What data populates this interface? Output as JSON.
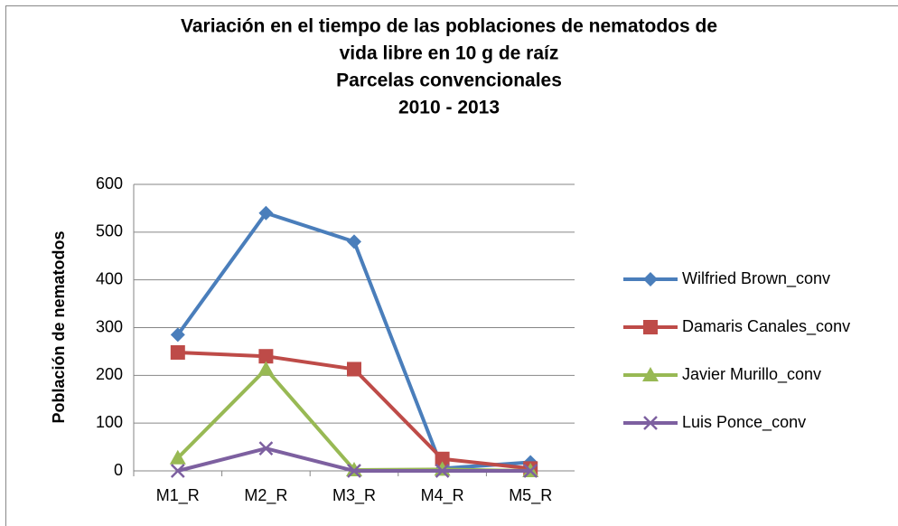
{
  "chart_data": {
    "type": "line",
    "title": [
      "Variación en el tiempo de las poblaciones de nematodos de",
      "vida libre en 10 g de raíz",
      "Parcelas convencionales",
      "2010 - 2013"
    ],
    "y_label": "Población de nematodos",
    "categories": [
      "M1_R",
      "M2_R",
      "M3_R",
      "M4_R",
      "M5_R"
    ],
    "series": [
      {
        "name": "Wilfried Brown_conv",
        "color": "#4a7ebb",
        "marker": "diamond",
        "values": [
          285,
          540,
          480,
          5,
          18
        ]
      },
      {
        "name": "Damaris Canales_conv",
        "color": "#be4b48",
        "marker": "square",
        "values": [
          248,
          240,
          213,
          25,
          5
        ]
      },
      {
        "name": "Javier Murillo_conv",
        "color": "#98b954",
        "marker": "triangle",
        "values": [
          27,
          213,
          2,
          3,
          0
        ]
      },
      {
        "name": "Luis Ponce_conv",
        "color": "#7d60a0",
        "marker": "x",
        "values": [
          0,
          47,
          0,
          0,
          0
        ]
      }
    ],
    "ylim": [
      0,
      600
    ],
    "yticks": [
      0,
      100,
      200,
      300,
      400,
      500,
      600
    ],
    "grid": true,
    "legend": "right"
  }
}
